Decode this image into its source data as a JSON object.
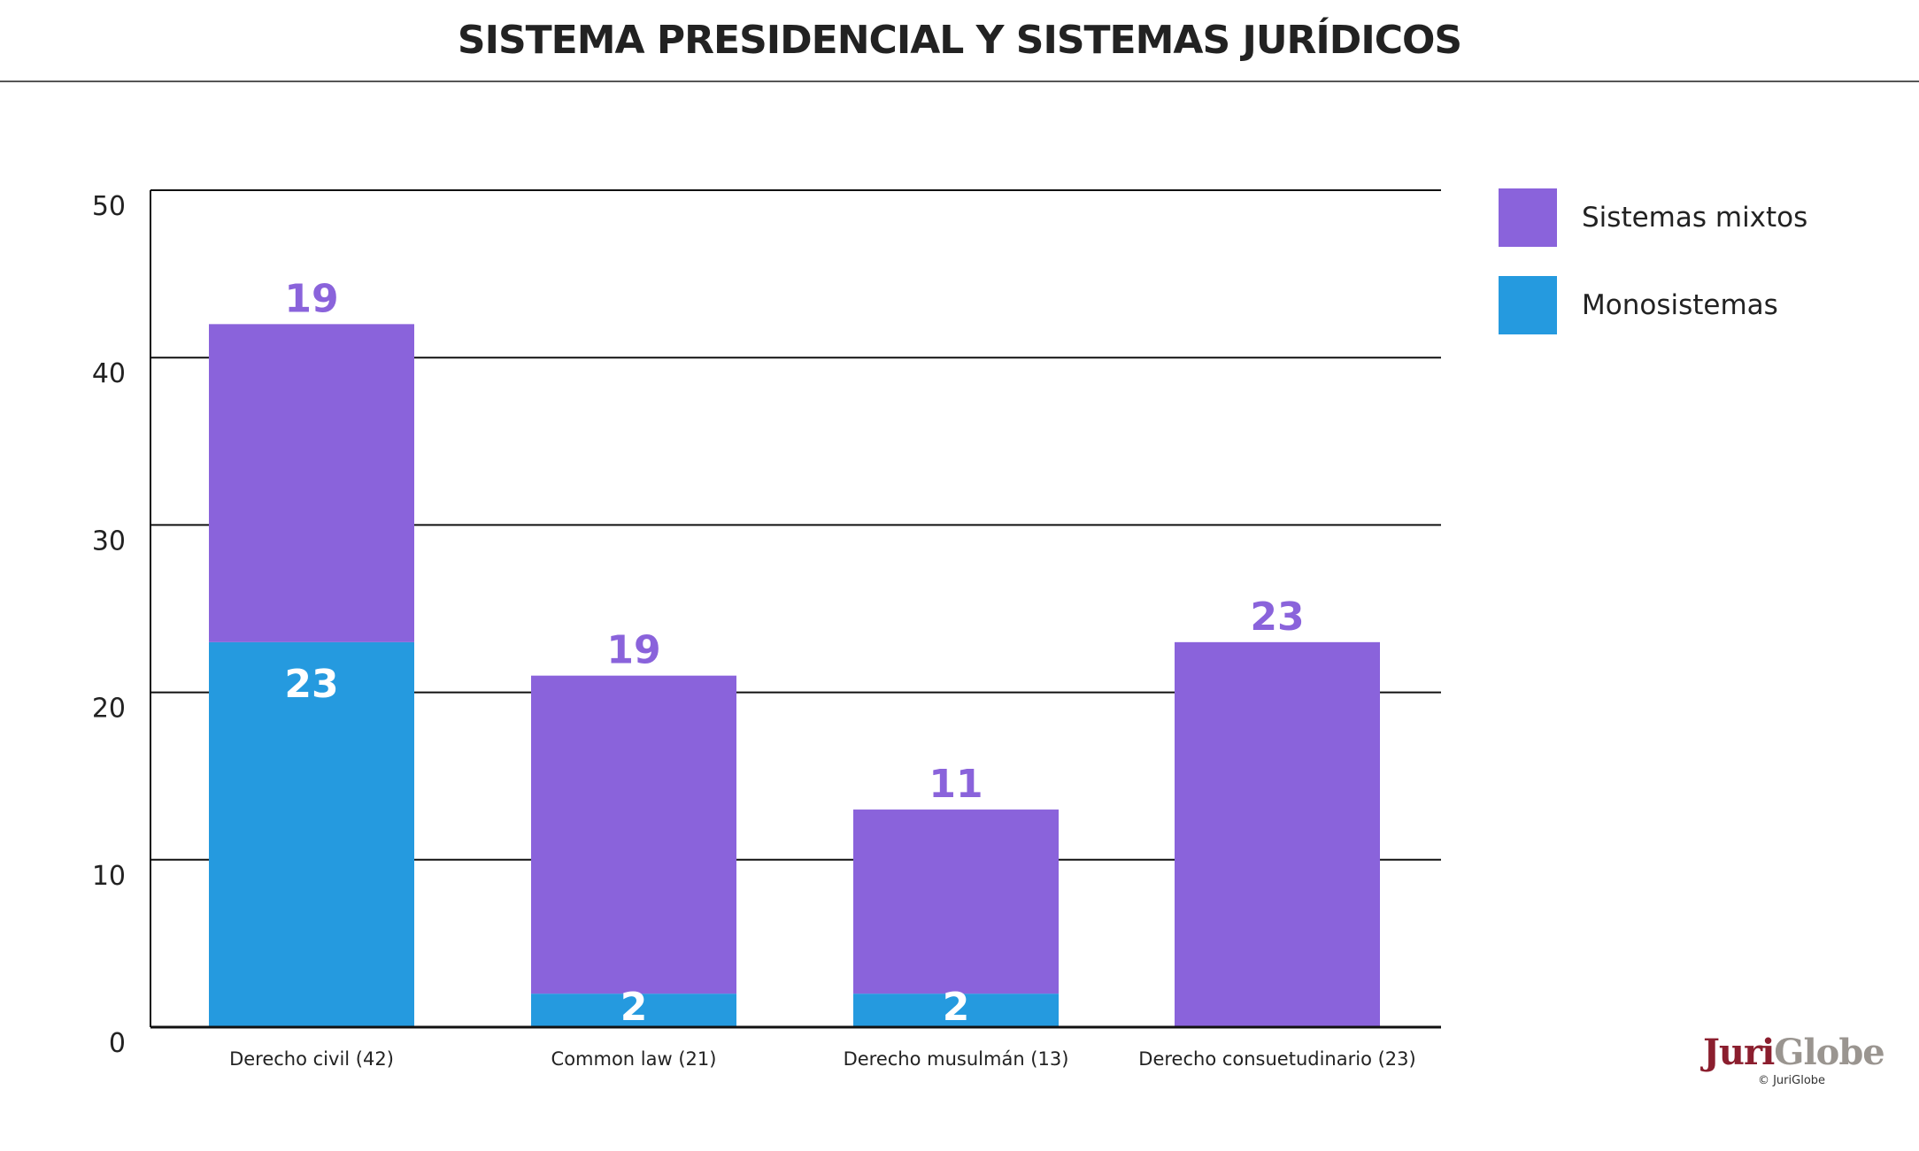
{
  "title": "SISTEMA PRESIDENCIAL Y SISTEMAS JURÍDICOS",
  "chart_data": {
    "type": "bar",
    "stacked": true,
    "title": "SISTEMA PRESIDENCIAL Y SISTEMAS JURÍDICOS",
    "xlabel": "",
    "ylabel": "",
    "categories": [
      "Derecho civil (42)",
      "Common law (21)",
      "Derecho musulmán (13)",
      "Derecho consuetudinario (23)"
    ],
    "series": [
      {
        "name": "Monosistemas",
        "values": [
          23,
          2,
          2,
          0
        ],
        "color": "#259ADF"
      },
      {
        "name": "Sistemas mixtos",
        "values": [
          19,
          19,
          11,
          23
        ],
        "color": "#8A63DB"
      }
    ],
    "data_labels": {
      "Monosistemas": [
        "23",
        "2",
        "2",
        ""
      ],
      "Sistemas mixtos": [
        "19",
        "19",
        "11",
        "23"
      ]
    },
    "yticks": [
      0,
      10,
      20,
      30,
      40,
      50
    ],
    "ylim": [
      0,
      50
    ],
    "grid": true,
    "legend_position": "right"
  },
  "legend": [
    {
      "label": "Sistemas mixtos",
      "color": "#8A63DB"
    },
    {
      "label": "Monosistemas",
      "color": "#259ADF"
    }
  ],
  "logo": {
    "part1": "Juri",
    "part2": "Globe",
    "copyright": "© JuriGlobe"
  }
}
